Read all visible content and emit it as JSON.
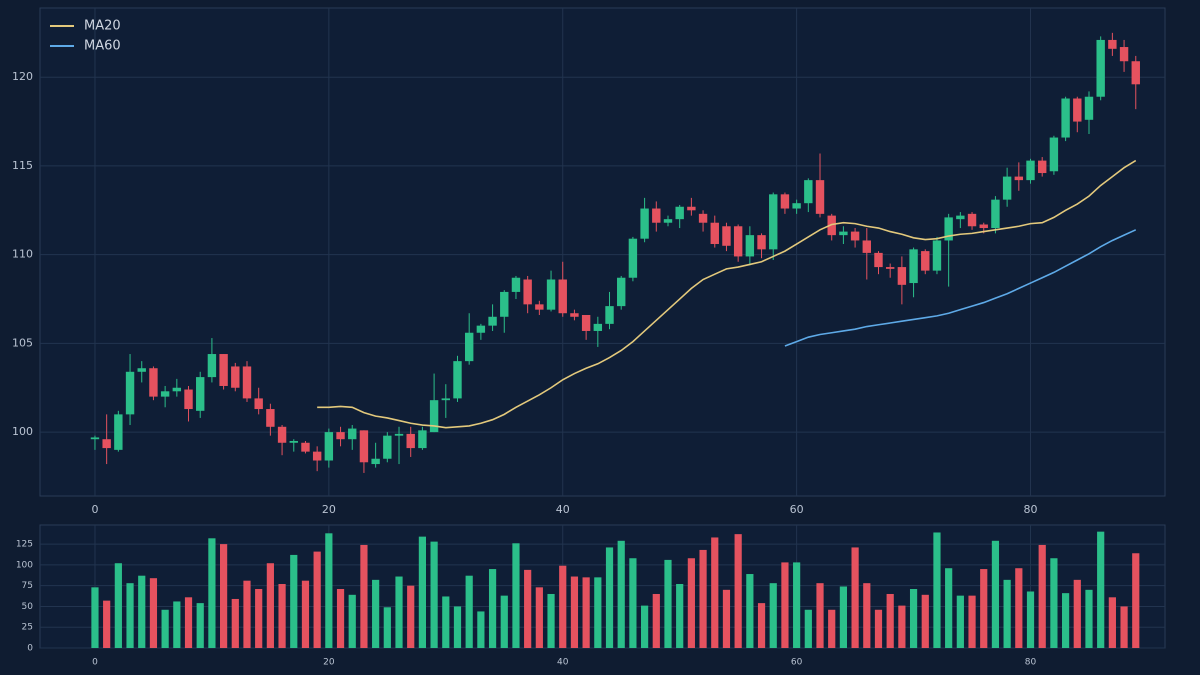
{
  "chart_data": [
    {
      "type": "candlestick",
      "x": [
        0,
        1,
        2,
        3,
        4,
        5,
        6,
        7,
        8,
        9,
        10,
        11,
        12,
        13,
        14,
        15,
        16,
        17,
        18,
        19,
        20,
        21,
        22,
        23,
        24,
        25,
        26,
        27,
        28,
        29,
        30,
        31,
        32,
        33,
        34,
        35,
        36,
        37,
        38,
        39,
        40,
        41,
        42,
        43,
        44,
        45,
        46,
        47,
        48,
        49,
        50,
        51,
        52,
        53,
        54,
        55,
        56,
        57,
        58,
        59,
        60,
        61,
        62,
        63,
        64,
        65,
        66,
        67,
        68,
        69,
        70,
        71,
        72,
        73,
        74,
        75,
        76,
        77,
        78,
        79,
        80,
        81,
        82,
        83,
        84,
        85,
        86,
        87,
        88,
        89
      ],
      "open": [
        99.6,
        99.6,
        99,
        101,
        103.4,
        103.6,
        102,
        102.3,
        102.4,
        101.2,
        103.1,
        104.4,
        103.7,
        103.7,
        101.9,
        101.3,
        100.3,
        99.4,
        99.4,
        98.9,
        98.4,
        100,
        99.6,
        100.1,
        98.2,
        98.5,
        99.8,
        99.9,
        99.1,
        100,
        101.8,
        101.9,
        104,
        105.6,
        106,
        106.5,
        107.9,
        108.6,
        107.2,
        106.9,
        108.6,
        106.7,
        106.6,
        105.7,
        106.1,
        107.1,
        108.7,
        110.9,
        112.6,
        111.8,
        112,
        112.7,
        112.3,
        111.8,
        111.6,
        111.6,
        109.9,
        111.1,
        110.3,
        113.4,
        112.6,
        112.9,
        114.2,
        112.2,
        111.1,
        111.3,
        110.8,
        110.1,
        109.3,
        109.3,
        108.4,
        110.2,
        109.1,
        110.8,
        112,
        112.3,
        111.7,
        111.5,
        113.1,
        114.4,
        114.2,
        115.3,
        114.7,
        116.6,
        118.8,
        117.6,
        118.9,
        122.1,
        121.7,
        120.9
      ],
      "high": [
        99.8,
        101,
        101.2,
        104.4,
        104,
        103.7,
        102.6,
        103,
        102.6,
        103.4,
        105.3,
        104.4,
        103.9,
        104,
        102.5,
        101.6,
        100.4,
        99.6,
        99.5,
        99.2,
        100.2,
        100.3,
        100.4,
        100.1,
        99.4,
        100,
        100.3,
        100.3,
        100.3,
        103.3,
        102.7,
        104.3,
        106.7,
        106.1,
        107.2,
        108,
        108.8,
        108.8,
        107.4,
        109.1,
        109.6,
        106.9,
        106.6,
        106.5,
        107.9,
        108.8,
        111,
        113.2,
        113,
        112.2,
        112.8,
        113.2,
        112.5,
        112.2,
        111.8,
        111.7,
        111.6,
        111.2,
        113.5,
        113.5,
        113.1,
        114.3,
        115.7,
        112.3,
        111.6,
        111.5,
        111.5,
        110.2,
        109.5,
        109.9,
        110.4,
        110.3,
        111,
        112.3,
        112.4,
        112.4,
        111.8,
        113.3,
        114.9,
        115.2,
        115.4,
        115.5,
        116.7,
        118.9,
        118.9,
        119.2,
        122.3,
        122.5,
        122.1,
        121.2
      ],
      "low": [
        99,
        98.2,
        98.9,
        100.4,
        102.8,
        101.8,
        101.4,
        102,
        100.6,
        100.8,
        102.8,
        102.4,
        102.3,
        101.7,
        101,
        99.8,
        98.7,
        98.9,
        98.8,
        97.8,
        98,
        99.2,
        99,
        97.7,
        98,
        98.3,
        98.2,
        98.6,
        99,
        100,
        100.8,
        101.7,
        103.8,
        105.2,
        105.7,
        105.6,
        107.5,
        106.7,
        106.6,
        106.8,
        106.5,
        106.3,
        105.2,
        104.8,
        105.8,
        106.9,
        108.5,
        110.7,
        111.3,
        111.6,
        111.5,
        112.2,
        111.3,
        110.4,
        110.2,
        109.6,
        109.4,
        109.8,
        109.7,
        112.3,
        112.3,
        112.4,
        112.1,
        110.8,
        110.6,
        110.4,
        108.6,
        108.9,
        108.7,
        107.2,
        107.6,
        108.9,
        108.9,
        108.2,
        111.5,
        111.4,
        111.2,
        111.2,
        112.7,
        113.6,
        114,
        114.4,
        114.5,
        116.4,
        116.9,
        116.8,
        118.7,
        121.2,
        120.3,
        118.2
      ],
      "close": [
        99.7,
        99.1,
        101,
        103.4,
        103.6,
        102,
        102.3,
        102.5,
        101.3,
        103.1,
        104.4,
        102.6,
        102.5,
        101.9,
        101.3,
        100.3,
        99.4,
        99.5,
        98.9,
        98.4,
        100,
        99.6,
        100.2,
        98.3,
        98.5,
        99.8,
        99.9,
        99.1,
        100.1,
        101.8,
        101.9,
        104,
        105.6,
        106,
        106.5,
        107.9,
        108.7,
        107.2,
        106.9,
        108.6,
        106.7,
        106.5,
        105.7,
        106.1,
        107.1,
        108.7,
        110.9,
        112.6,
        111.8,
        112,
        112.7,
        112.5,
        111.8,
        110.6,
        110.5,
        109.9,
        111.1,
        110.3,
        113.4,
        112.6,
        112.9,
        114.2,
        112.3,
        111.1,
        111.3,
        110.8,
        110.1,
        109.3,
        109.2,
        108.3,
        110.3,
        109.1,
        110.8,
        112.1,
        112.2,
        111.6,
        111.5,
        113.1,
        114.4,
        114.2,
        115.3,
        114.6,
        116.6,
        118.8,
        117.5,
        118.9,
        122.1,
        121.6,
        120.9,
        119.6
      ],
      "up_color": "#2bbf8a",
      "down_color": "#e5525f",
      "series": [
        {
          "name": "MA20",
          "color": "#e3c97c",
          "values": [
            null,
            null,
            null,
            null,
            null,
            null,
            null,
            null,
            null,
            null,
            null,
            null,
            null,
            null,
            null,
            null,
            null,
            null,
            null,
            101.4,
            101.4,
            101.45,
            101.4,
            101.1,
            100.9,
            100.8,
            100.65,
            100.5,
            100.4,
            100.35,
            100.25,
            100.3,
            100.35,
            100.5,
            100.7,
            101,
            101.4,
            101.75,
            102.1,
            102.5,
            102.95,
            103.3,
            103.6,
            103.85,
            104.2,
            104.6,
            105.1,
            105.7,
            106.3,
            106.9,
            107.5,
            108.1,
            108.6,
            108.9,
            109.2,
            109.3,
            109.45,
            109.6,
            109.9,
            110.2,
            110.6,
            111,
            111.4,
            111.7,
            111.8,
            111.75,
            111.6,
            111.5,
            111.3,
            111.15,
            110.95,
            110.85,
            110.9,
            111.05,
            111.15,
            111.2,
            111.3,
            111.4,
            111.5,
            111.6,
            111.75,
            111.8,
            112.1,
            112.5,
            112.85,
            113.3,
            113.9,
            114.4,
            114.9,
            115.3
          ]
        },
        {
          "name": "MA60",
          "color": "#5eaae8",
          "values": [
            null,
            null,
            null,
            null,
            null,
            null,
            null,
            null,
            null,
            null,
            null,
            null,
            null,
            null,
            null,
            null,
            null,
            null,
            null,
            null,
            null,
            null,
            null,
            null,
            null,
            null,
            null,
            null,
            null,
            null,
            null,
            null,
            null,
            null,
            null,
            null,
            null,
            null,
            null,
            null,
            null,
            null,
            null,
            null,
            null,
            null,
            null,
            null,
            null,
            null,
            null,
            null,
            null,
            null,
            null,
            null,
            null,
            null,
            null,
            104.85,
            105.1,
            105.35,
            105.5,
            105.6,
            105.7,
            105.8,
            105.95,
            106.05,
            106.15,
            106.25,
            106.35,
            106.45,
            106.55,
            106.7,
            106.9,
            107.1,
            107.3,
            107.55,
            107.8,
            108.1,
            108.4,
            108.7,
            109,
            109.35,
            109.7,
            110.05,
            110.45,
            110.8,
            111.1,
            111.4
          ]
        }
      ],
      "xlim": [
        -4.7,
        91.5
      ],
      "xticks": [
        0,
        20,
        40,
        60,
        80
      ],
      "ylim": [
        96.4,
        123.9
      ],
      "yticks": [
        100,
        105,
        110,
        115,
        120
      ],
      "grid": true,
      "legend": "upper left"
    },
    {
      "type": "bar",
      "values": [
        73,
        57,
        102,
        78,
        87,
        84,
        46,
        56,
        61,
        54,
        132,
        125,
        59,
        81,
        71,
        102,
        77,
        112,
        81,
        116,
        138,
        71,
        64,
        124,
        82,
        49,
        86,
        75,
        134,
        128,
        62,
        50,
        87,
        44,
        95,
        63,
        126,
        94,
        73,
        65,
        99,
        86,
        85,
        85,
        121,
        129,
        108,
        51,
        65,
        106,
        77,
        108,
        118,
        133,
        70,
        137,
        89,
        54,
        78,
        103,
        103,
        46,
        78,
        46,
        74,
        121,
        78,
        46,
        65,
        51,
        71,
        64,
        139,
        96,
        63,
        63,
        95,
        129,
        82,
        96,
        68,
        124,
        108,
        66,
        82,
        70,
        140,
        61,
        50,
        114
      ],
      "xlim": [
        -4.7,
        91.5
      ],
      "xticks": [
        0,
        20,
        40,
        60,
        80
      ],
      "ylim": [
        0,
        148
      ],
      "yticks": [
        0,
        25,
        50,
        75,
        100,
        125
      ],
      "grid": true
    }
  ]
}
